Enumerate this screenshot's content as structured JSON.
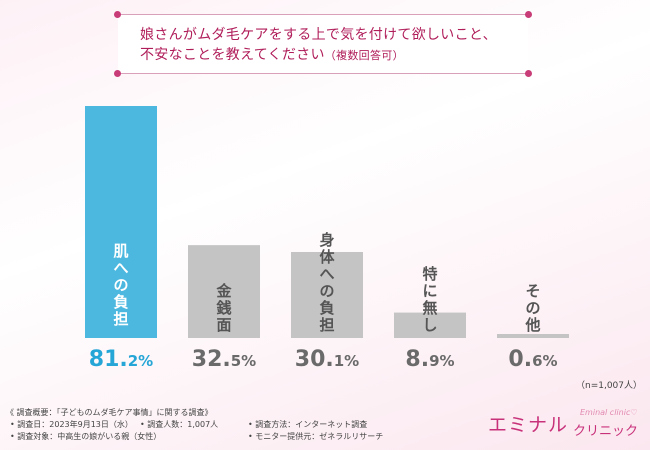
{
  "title": {
    "line1": "娘さんがムダ毛ケアをする上で気を付けて欲しいこと、",
    "line2": "不安なことを教えてください",
    "note": "（複数回答可）"
  },
  "chart_data": {
    "type": "bar",
    "categories": [
      "肌への負担",
      "金銭面",
      "身体への負担",
      "特に無し",
      "その他"
    ],
    "values": [
      81.2,
      32.5,
      30.1,
      8.9,
      0.6
    ],
    "value_labels": [
      {
        "main": "81.",
        "dec": "2%"
      },
      {
        "main": "32.",
        "dec": "5%"
      },
      {
        "main": "30.",
        "dec": "1%"
      },
      {
        "main": "8.",
        "dec": "9%"
      },
      {
        "main": "0.",
        "dec": "6%"
      }
    ],
    "highlight_index": 0,
    "colors": {
      "highlight": "#4db8df",
      "normal": "#c4c4c4",
      "highlight_text": "#26a6d6",
      "normal_text": "#6a6a6a"
    },
    "ylim": [
      0,
      81.2
    ],
    "sample_note": "（n=1,007人）"
  },
  "footer": {
    "survey_title": "《 調査概要：「子どものムダ毛ケア事情」に関する調査》",
    "date": "調査日：2023年9月13日（水）",
    "count": "調査人数：1,007人",
    "method": "調査方法：インターネット調査",
    "target": "調査対象：中高生の娘がいる親（女性）",
    "provider": "モニター提供元：ゼネラルリサーチ"
  },
  "logo": {
    "main": "エミナル",
    "sub": "クリニック",
    "en": "Eminal clinic♡"
  }
}
